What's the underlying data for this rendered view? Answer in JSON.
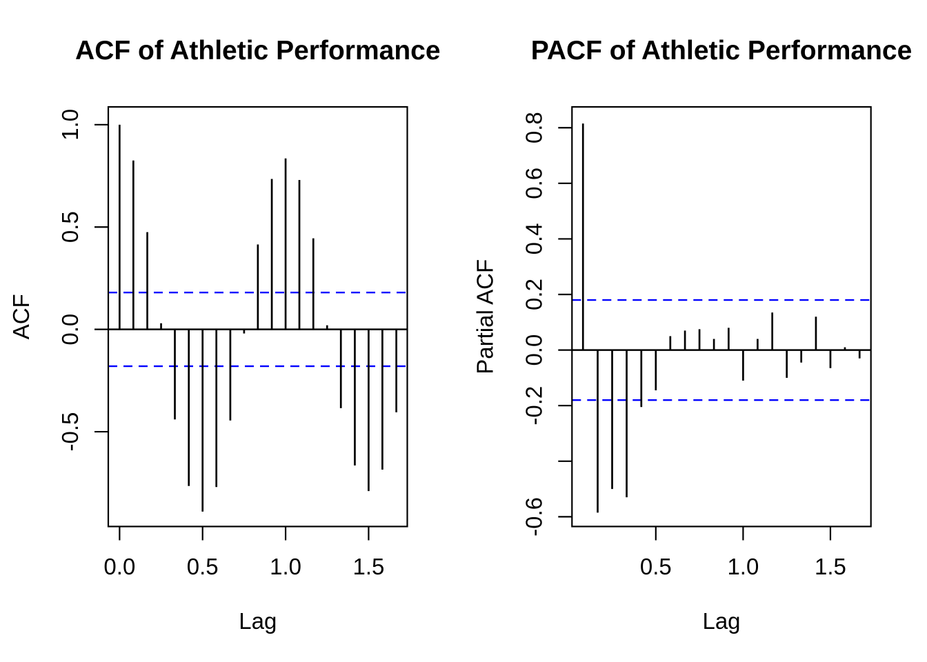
{
  "figure": {
    "background": "#ffffff",
    "bar_color": "#000000",
    "axis_color": "#000000",
    "conf_color": "#0000ff"
  },
  "chart_data": [
    {
      "type": "bar",
      "chart_kind": "autocorrelogram",
      "title": "ACF of Athletic Performance",
      "xlabel": "Lag",
      "ylabel": "ACF",
      "grid": false,
      "legend": "none",
      "bar_color": "#000000",
      "conf_band": {
        "level": 0.18,
        "color": "#0000ff",
        "style": "dashed"
      },
      "xlim": [
        -0.068,
        1.733
      ],
      "ylim": [
        -0.963,
        1.087
      ],
      "x": [
        0,
        0.083,
        0.167,
        0.25,
        0.333,
        0.417,
        0.5,
        0.583,
        0.667,
        0.75,
        0.833,
        0.917,
        1.0,
        1.083,
        1.167,
        1.25,
        1.333,
        1.417,
        1.5,
        1.583,
        1.667
      ],
      "values": [
        1.0,
        0.825,
        0.475,
        0.03,
        -0.44,
        -0.765,
        -0.89,
        -0.77,
        -0.445,
        -0.02,
        0.415,
        0.735,
        0.835,
        0.73,
        0.445,
        0.02,
        -0.385,
        -0.665,
        -0.79,
        -0.685,
        -0.405
      ],
      "xticks": [
        {
          "value": 0.0,
          "label": "0.0"
        },
        {
          "value": 0.5,
          "label": "0.5"
        },
        {
          "value": 1.0,
          "label": "1.0"
        },
        {
          "value": 1.5,
          "label": "1.5"
        }
      ],
      "yticks": [
        {
          "value": 1.0,
          "label": "1.0"
        },
        {
          "value": 0.5,
          "label": "0.5"
        },
        {
          "value": 0.0,
          "label": "0.0"
        },
        {
          "value": -0.5,
          "label": "-0.5"
        }
      ]
    },
    {
      "type": "bar",
      "chart_kind": "partial-autocorrelogram",
      "title": "PACF of Athletic Performance",
      "xlabel": "Lag",
      "ylabel": "Partial ACF",
      "grid": false,
      "legend": "none",
      "bar_color": "#000000",
      "conf_band": {
        "level": 0.18,
        "color": "#0000ff",
        "style": "dashed"
      },
      "xlim": [
        0.02,
        1.732
      ],
      "ylim": [
        -0.635,
        0.875
      ],
      "x": [
        0.083,
        0.167,
        0.25,
        0.333,
        0.417,
        0.5,
        0.583,
        0.667,
        0.75,
        0.833,
        0.917,
        1.0,
        1.083,
        1.167,
        1.25,
        1.333,
        1.417,
        1.5,
        1.583,
        1.667
      ],
      "values": [
        0.815,
        -0.585,
        -0.5,
        -0.53,
        -0.205,
        -0.145,
        0.05,
        0.07,
        0.075,
        0.04,
        0.08,
        -0.11,
        0.04,
        0.135,
        -0.1,
        -0.045,
        0.12,
        -0.065,
        0.01,
        -0.03
      ],
      "xticks": [
        {
          "value": 0.5,
          "label": "0.5"
        },
        {
          "value": 1.0,
          "label": "1.0"
        },
        {
          "value": 1.5,
          "label": "1.5"
        }
      ],
      "yticks": [
        {
          "value": 0.8,
          "label": "0.8"
        },
        {
          "value": 0.6,
          "label": "0.6"
        },
        {
          "value": 0.4,
          "label": "0.4"
        },
        {
          "value": 0.2,
          "label": "0.2"
        },
        {
          "value": 0.0,
          "label": "0.0"
        },
        {
          "value": -0.2,
          "label": "-0.2"
        },
        {
          "value": -0.4,
          "label": ""
        },
        {
          "value": -0.6,
          "label": "-0.6"
        }
      ]
    }
  ]
}
